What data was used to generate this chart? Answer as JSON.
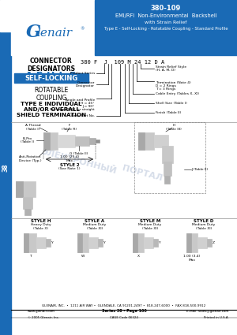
{
  "title_part": "380-109",
  "title_line1": "EMI/RFI  Non-Environmental  Backshell",
  "title_line2": "with Strain Relief",
  "title_line3": "Type E - Self-Locking - Rotatable Coupling - Standard Profile",
  "header_bg": "#1a6ab5",
  "header_text_color": "#ffffff",
  "page_bg": "#ffffff",
  "sidebar_bg": "#1a6ab5",
  "sidebar_text": "38",
  "connector_designators_title": "CONNECTOR\nDESIGNATORS",
  "connector_designators": "A-F-H-L-S",
  "self_locking_text": "SELF-LOCKING",
  "rotatable_coupling": "ROTATABLE\nCOUPLING",
  "type_e_text": "TYPE E INDIVIDUAL\nAND/OR OVERALL\nSHIELD TERMINATION",
  "part_number_example": "380 F  J  109 M 24 12 D A",
  "footer_company": "GLENAIR, INC.  •  1211 AIR WAY •  GLENDALE, CA 91201-2497 •  818-247-6000  •  FAX 818-500-9912",
  "footer_web": "www.glenair.com",
  "footer_series": "Series 38 - Page 100",
  "footer_email": "E-Mail: sales@glenair.com",
  "footer_copyright": "© 2005 Glenair, Inc.",
  "footer_cage": "CAGE Code 06324",
  "footer_printed": "Printed in U.S.A.",
  "watermark_color": "#c5cfe0"
}
